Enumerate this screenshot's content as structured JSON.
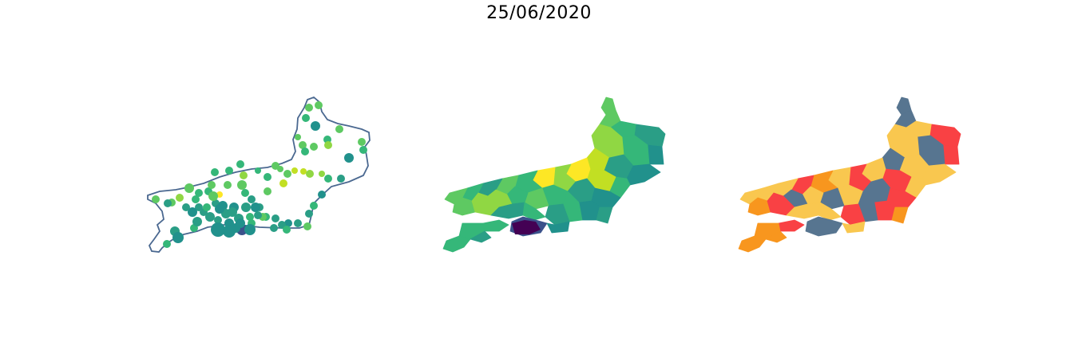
{
  "title": "25/06/2020",
  "colors": {
    "outline": "#4a6890",
    "viridis": [
      "#440154",
      "#3b528b",
      "#21918c",
      "#2a9e86",
      "#35b779",
      "#5ec962",
      "#90d743",
      "#c2df23",
      "#fde725"
    ],
    "categorical": {
      "yellow": "#f9c74f",
      "orange": "#f8961e",
      "red": "#f94144",
      "slate": "#577590"
    }
  },
  "panels": [
    {
      "id": "points",
      "kind": "bubble-map"
    },
    {
      "id": "choro",
      "kind": "choropleth-viridis"
    },
    {
      "id": "cat",
      "kind": "choropleth-categorical"
    }
  ]
}
